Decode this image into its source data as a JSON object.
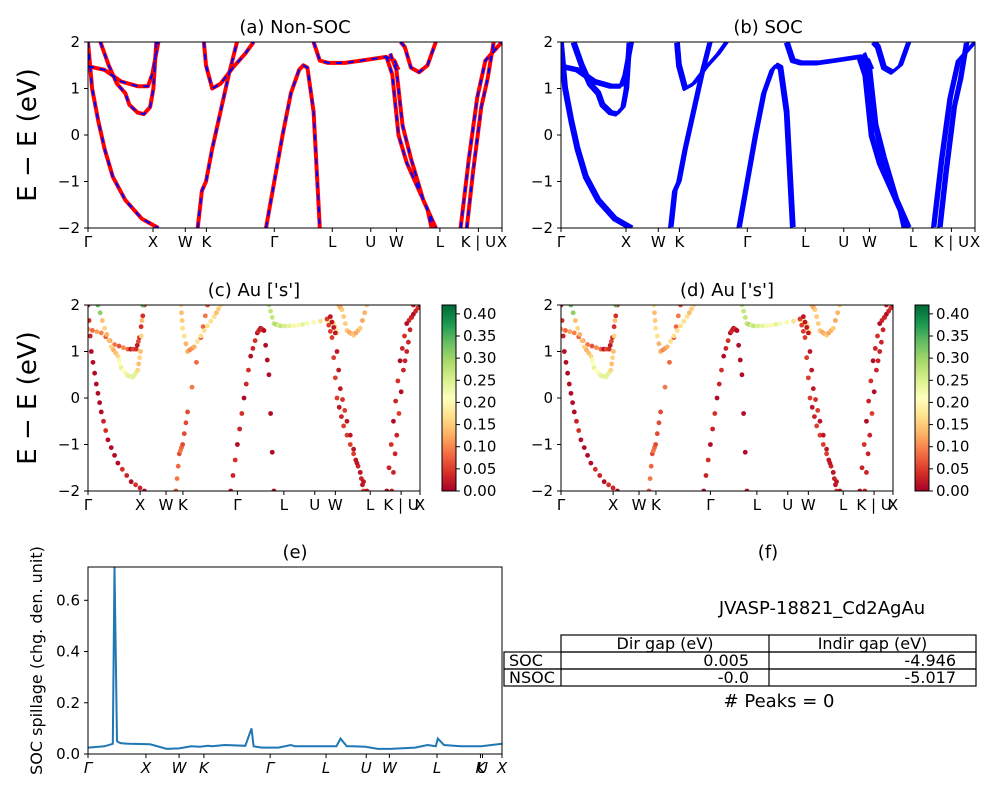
{
  "chart_data": [
    {
      "panel": "a",
      "type": "line",
      "title": "(a) Non-SOC",
      "ylabel": "E − E_f (eV)",
      "ylim": [
        -2,
        2
      ],
      "yticks": [
        -2,
        -1,
        0,
        1,
        2
      ],
      "xticklabels": [
        "Γ",
        "X",
        "W",
        "K",
        "Γ",
        "L",
        "U",
        "W",
        "L",
        "K | U",
        "X"
      ],
      "x_range": [
        0,
        1
      ],
      "series": [
        {
          "color": "#ff0000",
          "style": "solid",
          "bands": [
            {
              "x": [
                0,
                0.01,
                0.025,
                0.04,
                0.06,
                0.09,
                0.13,
                0.17
              ],
              "y": [
                2.0,
                1.0,
                0.3,
                -0.3,
                -0.9,
                -1.4,
                -1.8,
                -2.0
              ]
            },
            {
              "x": [
                0,
                0.04,
                0.08,
                0.12,
                0.145,
                0.155,
                0.17
              ],
              "y": [
                1.48,
                1.4,
                1.15,
                1.05,
                1.05,
                1.3,
                2.0
              ]
            },
            {
              "x": [
                0.03,
                0.05,
                0.07,
                0.09,
                0.1,
                0.12,
                0.135,
                0.15,
                0.158,
                0.165
              ],
              "y": [
                2.0,
                1.5,
                1.1,
                0.9,
                0.65,
                0.48,
                0.45,
                0.6,
                1.0,
                2.0
              ]
            },
            {
              "x": [
                0.265,
                0.275,
                0.285,
                0.3,
                0.34,
                0.36
              ],
              "y": [
                -2.0,
                -1.2,
                -1.0,
                -0.3,
                1.3,
                2.0
              ]
            },
            {
              "x": [
                0.28,
                0.285,
                0.3,
                0.32,
                0.35,
                0.38,
                0.4
              ],
              "y": [
                2.0,
                1.5,
                1.0,
                1.1,
                1.45,
                1.75,
                2.0
              ]
            },
            {
              "x": [
                0.43,
                0.45,
                0.47,
                0.49,
                0.51,
                0.52,
                0.53,
                0.545,
                0.56
              ],
              "y": [
                -2.0,
                -1.0,
                0.0,
                0.9,
                1.4,
                1.5,
                1.45,
                0.5,
                -2.0
              ]
            },
            {
              "x": [
                0.545,
                0.56,
                0.58,
                0.62,
                0.66,
                0.72,
                0.74,
                0.75
              ],
              "y": [
                2.0,
                1.6,
                1.55,
                1.55,
                1.6,
                1.68,
                1.6,
                1.4
              ]
            },
            {
              "x": [
                0.72,
                0.735,
                0.75,
                0.77,
                0.8,
                0.82,
                0.83
              ],
              "y": [
                1.7,
                1.3,
                0.0,
                -0.6,
                -1.2,
                -1.6,
                -2.0
              ]
            },
            {
              "x": [
                0.73,
                0.745,
                0.76,
                0.78,
                0.81,
                0.84
              ],
              "y": [
                1.75,
                1.4,
                0.2,
                -0.5,
                -1.4,
                -2.0
              ]
            },
            {
              "x": [
                0.755,
                0.765,
                0.78,
                0.8,
                0.82,
                0.84
              ],
              "y": [
                2.0,
                1.9,
                1.45,
                1.35,
                1.5,
                2.0
              ]
            },
            {
              "x": [
                0.9,
                0.92,
                0.94,
                0.96,
                0.98,
                1.0
              ],
              "y": [
                -2.0,
                -0.5,
                0.8,
                1.6,
                1.8,
                2.0
              ]
            },
            {
              "x": [
                0.915,
                0.93,
                0.95,
                0.965,
                0.98
              ],
              "y": [
                -2.0,
                -0.8,
                0.6,
                1.2,
                2.0
              ]
            },
            {
              "x": [
                1.045,
                1.06,
                1.08,
                1.1,
                1.115,
                1.13,
                1.15
              ],
              "y": [
                2.0,
                1.3,
                0.0,
                -0.5,
                -1.2,
                -1.6,
                -2.0
              ]
            },
            {
              "x": [
                1.06,
                1.075,
                1.09,
                1.11,
                1.13
              ],
              "y": [
                1.75,
                1.6,
                1.5,
                0.5,
                -2.0
              ]
            },
            {
              "x": [
                1.07,
                1.09,
                1.12,
                1.15,
                1.18,
                1.2
              ],
              "y": [
                2.0,
                1.8,
                1.5,
                1.35,
                1.15,
                1.05
              ]
            },
            {
              "x": [
                1.045,
                1.06,
                1.09,
                1.12,
                1.15,
                1.18,
                1.2
              ],
              "y": [
                2.0,
                1.75,
                1.45,
                1.2,
                0.9,
                0.65,
                0.45
              ]
            }
          ]
        },
        {
          "color": "#0000ff",
          "style": "dashed",
          "same_as": "red bands"
        }
      ]
    },
    {
      "panel": "b",
      "type": "line",
      "title": "(b) SOC",
      "ylim": [
        -2,
        2
      ],
      "yticks": [
        -2,
        -1,
        0,
        1,
        2
      ],
      "xticklabels": [
        "Γ",
        "X",
        "W",
        "K",
        "Γ",
        "L",
        "U",
        "W",
        "L",
        "K | U",
        "X"
      ],
      "series": [
        {
          "color": "#0000ff",
          "style": "solid",
          "spin_split": 0.02
        }
      ]
    },
    {
      "panel": "c",
      "type": "scatter",
      "title": "(c)  Au ['s']",
      "ylabel": "E − E_f (eV)",
      "ylim": [
        -2,
        2
      ],
      "yticks": [
        -2,
        -1,
        0,
        1,
        2
      ],
      "xticklabels": [
        "Γ",
        "X",
        "W",
        "K",
        "Γ",
        "L",
        "U",
        "W",
        "L",
        "K | U",
        "X"
      ],
      "colorbar": {
        "colormap": "RdYlGn",
        "range": [
          0,
          0.42
        ],
        "ticks": [
          "0.00",
          "0.05",
          "0.10",
          "0.15",
          "0.20",
          "0.25",
          "0.30",
          "0.35",
          "0.40"
        ]
      }
    },
    {
      "panel": "d",
      "type": "scatter",
      "title": "(d) Au ['s']",
      "ylim": [
        -2,
        2
      ],
      "yticks": [
        -2,
        -1,
        0,
        1,
        2
      ],
      "xticklabels": [
        "Γ",
        "X",
        "W",
        "K",
        "Γ",
        "L",
        "U",
        "W",
        "L",
        "K | U",
        "X"
      ],
      "colorbar": {
        "colormap": "RdYlGn",
        "range": [
          0,
          0.42
        ],
        "ticks": [
          "0.00",
          "0.05",
          "0.10",
          "0.15",
          "0.20",
          "0.25",
          "0.30",
          "0.35",
          "0.40"
        ]
      }
    },
    {
      "panel": "e",
      "type": "line",
      "title": "(e)",
      "ylabel": "SOC spillage (chg. den. unit)",
      "ylim": [
        0,
        0.73
      ],
      "yticks": [
        "0.0",
        "0.2",
        "0.4",
        "0.6"
      ],
      "xticklabels": [
        "Γ",
        "X",
        "W",
        "K",
        "Γ",
        "L",
        "U",
        "W",
        "L",
        "K",
        "U",
        "X"
      ],
      "series": [
        {
          "color": "#1f77b4",
          "x": [
            0,
            0.04,
            0.06,
            0.064,
            0.07,
            0.075,
            0.08,
            0.1,
            0.15,
            0.19,
            0.22,
            0.25,
            0.27,
            0.29,
            0.3,
            0.33,
            0.38,
            0.395,
            0.4,
            0.42,
            0.46,
            0.49,
            0.5,
            0.53,
            0.57,
            0.6,
            0.61,
            0.625,
            0.64,
            0.67,
            0.7,
            0.73,
            0.79,
            0.82,
            0.84,
            0.845,
            0.86,
            0.9,
            0.95,
            1.0
          ],
          "y": [
            0.025,
            0.03,
            0.04,
            0.73,
            0.05,
            0.045,
            0.042,
            0.04,
            0.038,
            0.02,
            0.022,
            0.03,
            0.028,
            0.032,
            0.03,
            0.035,
            0.032,
            0.1,
            0.03,
            0.025,
            0.025,
            0.035,
            0.03,
            0.03,
            0.03,
            0.03,
            0.06,
            0.03,
            0.03,
            0.028,
            0.02,
            0.02,
            0.025,
            0.035,
            0.03,
            0.06,
            0.035,
            0.03,
            0.03,
            0.04
          ]
        }
      ]
    },
    {
      "panel": "f",
      "type": "table",
      "title": "(f)",
      "caption": "JVASP-18821_Cd2AgAu",
      "columns": [
        "Dir gap (eV)",
        "Indir gap (eV)"
      ],
      "rows": [
        {
          "label": "SOC",
          "values": [
            "0.005",
            "-4.946"
          ]
        },
        {
          "label": "NSOC",
          "values": [
            "-0.0",
            "-5.017"
          ]
        }
      ],
      "footer": "# Peaks = 0"
    }
  ]
}
